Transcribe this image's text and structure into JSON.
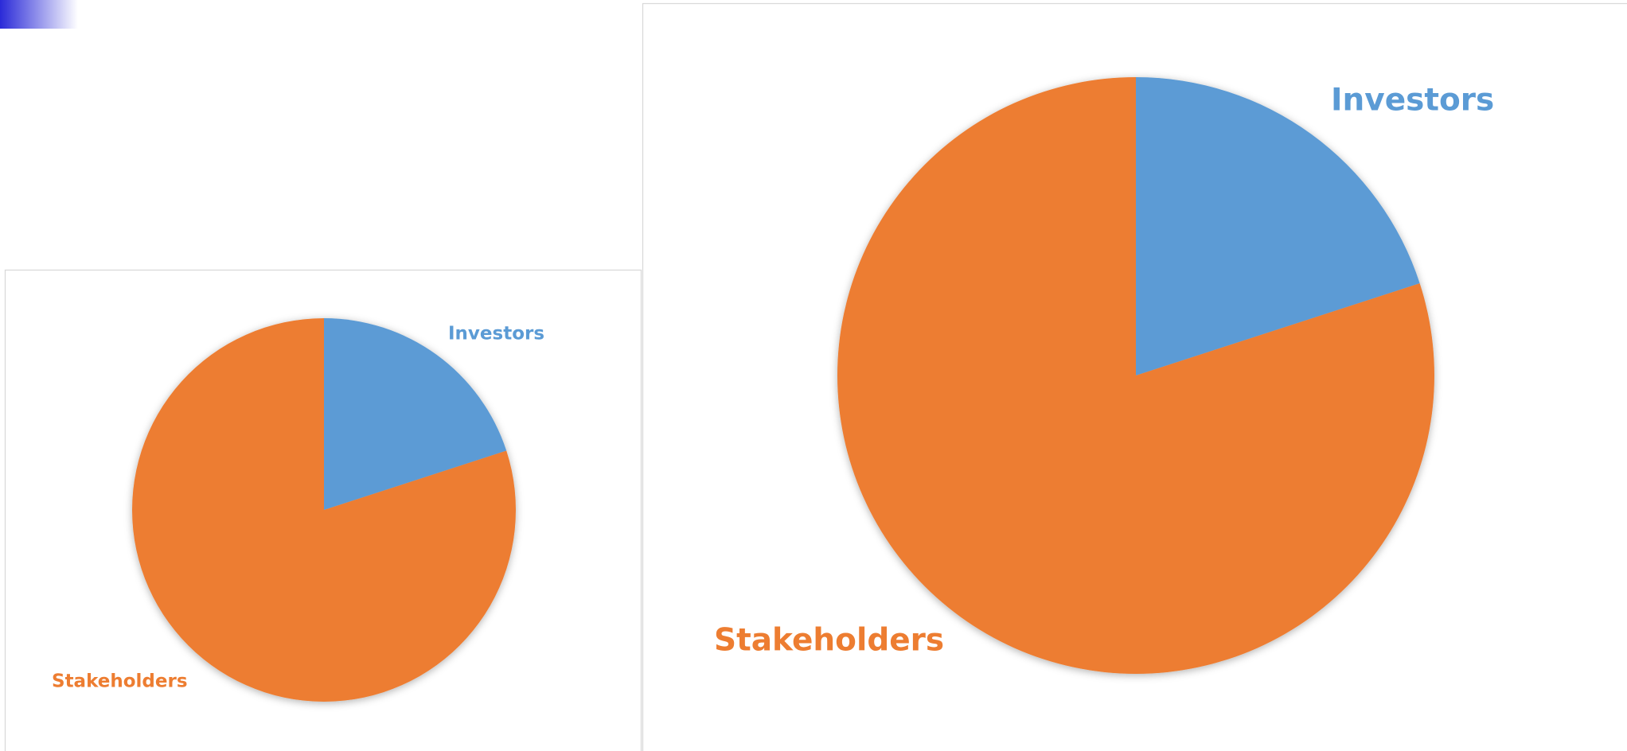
{
  "chart_data": [
    {
      "type": "pie",
      "categories": [
        "Investors",
        "Stakeholders"
      ],
      "values": [
        20,
        80
      ],
      "colors": [
        "#5b9bd5",
        "#ed7d31"
      ]
    },
    {
      "type": "pie",
      "categories": [
        "Investors",
        "Stakeholders"
      ],
      "values": [
        20,
        80
      ],
      "colors": [
        "#5b9bd5",
        "#ed7d31"
      ]
    }
  ]
}
